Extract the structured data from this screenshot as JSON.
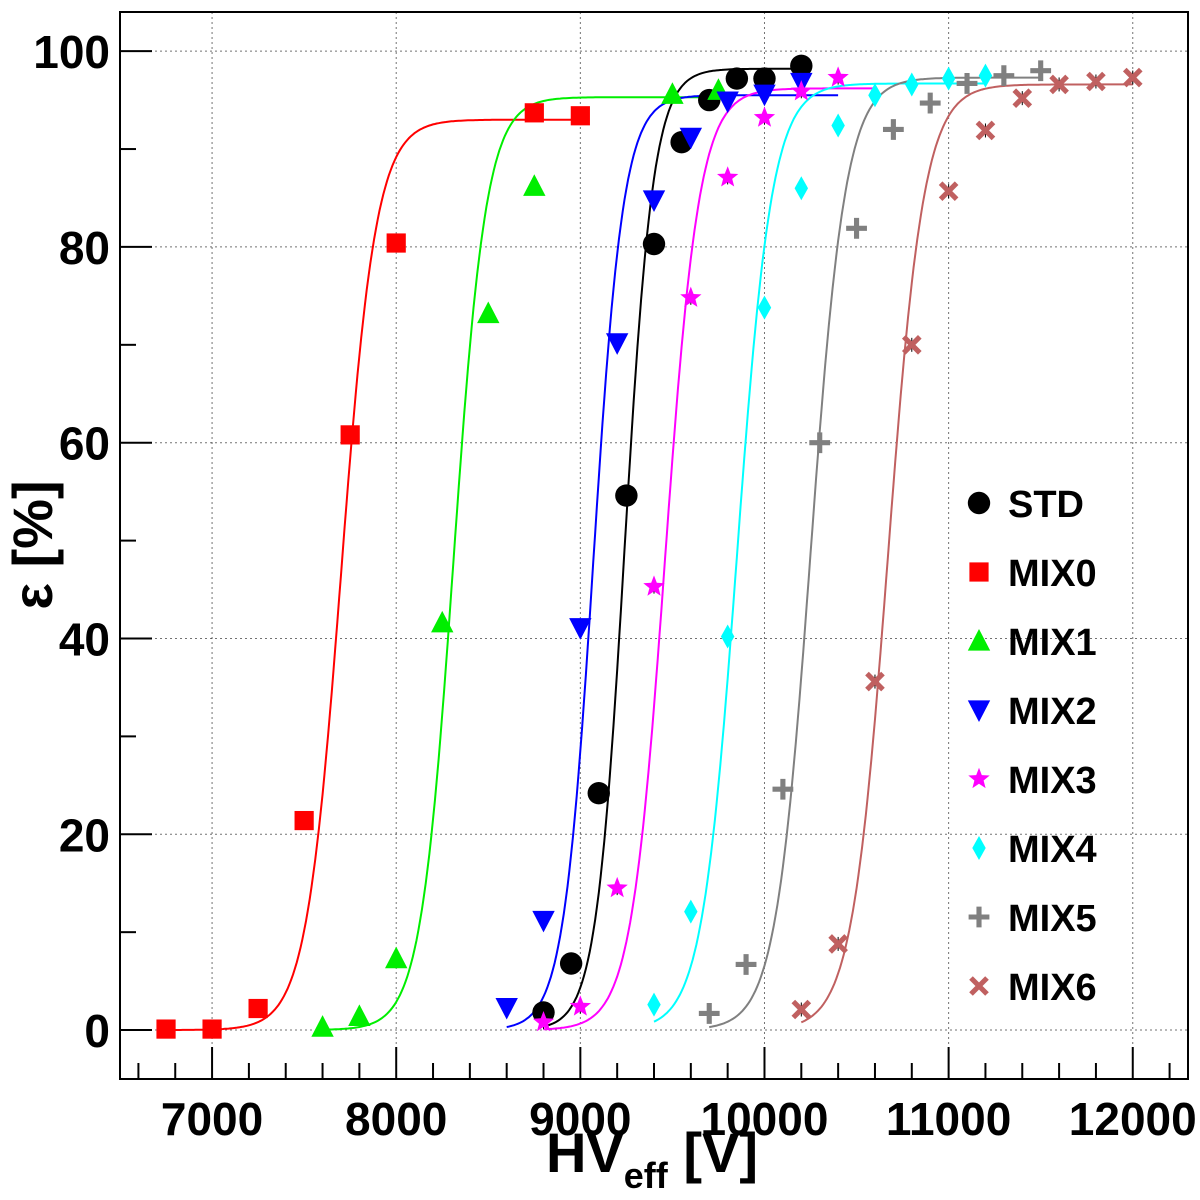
{
  "chart_data": {
    "type": "scatter",
    "xlabel_main": "HV",
    "xlabel_sub": "eff",
    "xlabel_unit": " [V]",
    "ylabel": "ε [%]",
    "xlim": [
      6500,
      12300
    ],
    "ylim": [
      -5,
      104
    ],
    "x_ticks": [
      7000,
      8000,
      9000,
      10000,
      11000,
      12000
    ],
    "x_tick_labels": [
      "7000",
      "8000",
      "9000",
      "10000",
      "11000",
      "12000"
    ],
    "y_ticks": [
      0,
      20,
      40,
      60,
      80,
      100
    ],
    "y_tick_labels": [
      "0",
      "20",
      "40",
      "60",
      "80",
      "100"
    ],
    "grid": true,
    "legend_position": "right",
    "series": [
      {
        "name": "STD",
        "color": "#000000",
        "marker": "circle",
        "x": [
          8800,
          8950,
          9100,
          9250,
          9400,
          9550,
          9700,
          9850,
          10000,
          10200
        ],
        "y": [
          1.8,
          6.8,
          24.2,
          54.6,
          80.3,
          90.7,
          95.0,
          97.2,
          97.2,
          98.5
        ],
        "fit": {
          "plateau": 98.2,
          "hv50": 9240,
          "lambda": 0.0128,
          "x_range": [
            8800,
            10200
          ]
        }
      },
      {
        "name": "MIX0",
        "color": "#ff0000",
        "marker": "square",
        "x": [
          6750,
          7000,
          7250,
          7500,
          7750,
          8000,
          8750,
          9000
        ],
        "y": [
          0.1,
          0.1,
          2.2,
          21.4,
          60.8,
          80.4,
          93.7,
          93.4
        ],
        "fit": {
          "plateau": 93.0,
          "hv50": 7700,
          "lambda": 0.0105,
          "x_range": [
            6750,
            9000
          ]
        }
      },
      {
        "name": "MIX1",
        "color": "#00ee00",
        "marker": "triangle-up",
        "x": [
          7600,
          7800,
          8000,
          8250,
          8500,
          8750,
          9500,
          9750
        ],
        "y": [
          0.3,
          1.4,
          7.3,
          41.6,
          73.2,
          86.2,
          95.6,
          96.0
        ],
        "fit": {
          "plateau": 95.3,
          "hv50": 8310,
          "lambda": 0.0112,
          "x_range": [
            7600,
            9750
          ]
        }
      },
      {
        "name": "MIX2",
        "color": "#0000ff",
        "marker": "triangle-down",
        "x": [
          8600,
          8800,
          9000,
          9200,
          9400,
          9600,
          9800,
          10000,
          10200
        ],
        "y": [
          2.3,
          11.2,
          41.1,
          70.2,
          84.8,
          91.2,
          94.9,
          95.6,
          96.8
        ],
        "fit": {
          "plateau": 95.5,
          "hv50": 9070,
          "lambda": 0.0122,
          "x_range": [
            8600,
            10400
          ]
        }
      },
      {
        "name": "MIX3",
        "color": "#ff00ff",
        "marker": "star",
        "x": [
          8800,
          9000,
          9200,
          9400,
          9600,
          9800,
          10000,
          10200,
          10400
        ],
        "y": [
          0.8,
          2.4,
          14.5,
          45.3,
          74.8,
          87.1,
          93.2,
          95.9,
          97.3
        ],
        "fit": {
          "plateau": 96.2,
          "hv50": 9460,
          "lambda": 0.0108,
          "x_range": [
            8800,
            10600
          ]
        }
      },
      {
        "name": "MIX4",
        "color": "#00ffff",
        "marker": "diamond",
        "x": [
          9400,
          9600,
          9800,
          10000,
          10200,
          10400,
          10600,
          10800,
          11000,
          11200
        ],
        "y": [
          2.6,
          12.1,
          40.2,
          73.8,
          86.0,
          92.4,
          95.5,
          96.6,
          97.2,
          97.5
        ],
        "fit": {
          "plateau": 96.7,
          "hv50": 9850,
          "lambda": 0.0105,
          "x_range": [
            9400,
            11200
          ]
        }
      },
      {
        "name": "MIX5",
        "color": "#808080",
        "marker": "plus",
        "x": [
          9700,
          9900,
          10100,
          10300,
          10500,
          10700,
          10900,
          11100,
          11300,
          11500
        ],
        "y": [
          1.7,
          6.7,
          24.6,
          60.0,
          81.9,
          92.0,
          94.7,
          96.7,
          97.5,
          98.0
        ],
        "fit": {
          "plateau": 97.3,
          "hv50": 10250,
          "lambda": 0.0105,
          "x_range": [
            9700,
            11500
          ]
        }
      },
      {
        "name": "MIX6",
        "color": "#c06060",
        "marker": "cross",
        "x": [
          10200,
          10400,
          10600,
          10800,
          11000,
          11200,
          11400,
          11600,
          11800,
          12000
        ],
        "y": [
          2.1,
          8.8,
          35.6,
          70.0,
          85.7,
          91.9,
          95.2,
          96.6,
          96.9,
          97.3
        ],
        "fit": {
          "plateau": 96.6,
          "hv50": 10670,
          "lambda": 0.0102,
          "x_range": [
            10200,
            12000
          ]
        }
      }
    ]
  }
}
